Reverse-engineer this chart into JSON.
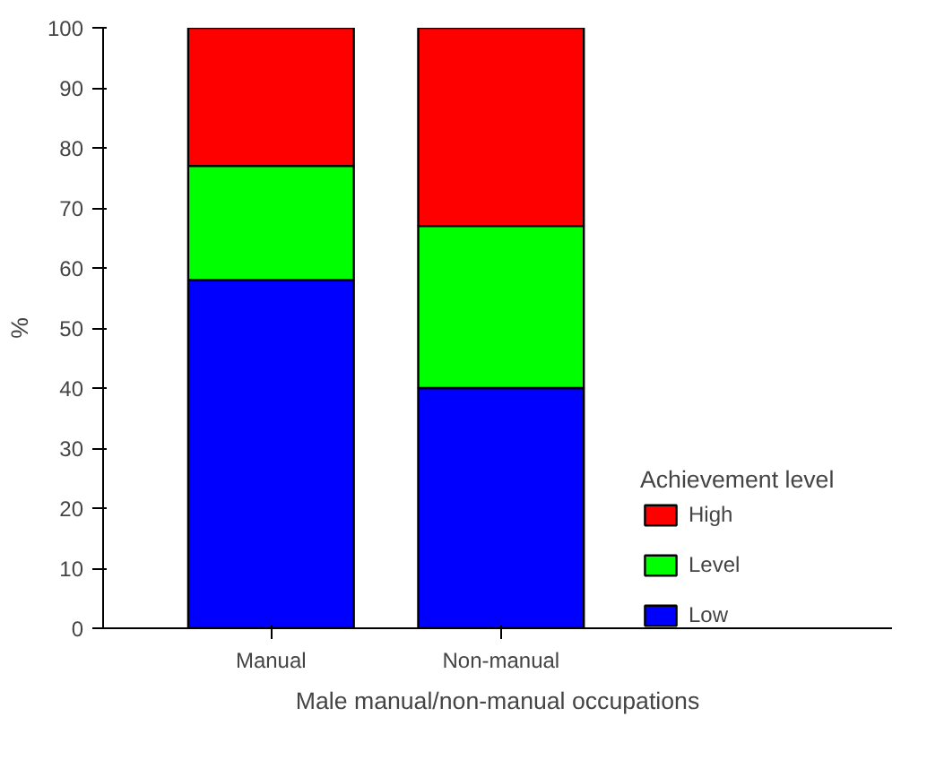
{
  "chart_data": {
    "type": "bar",
    "stacked": true,
    "categories": [
      "Manual",
      "Non-manual"
    ],
    "series": [
      {
        "name": "Low",
        "color": "#0000ff",
        "values": [
          58,
          40
        ]
      },
      {
        "name": "Level",
        "color": "#00ff00",
        "values": [
          19,
          27
        ]
      },
      {
        "name": "High",
        "color": "#ff0000",
        "values": [
          23,
          33
        ]
      }
    ],
    "xlabel": "Male manual/non-manual occupations",
    "ylabel": "%",
    "legend_title": "Achievement level",
    "legend": "right",
    "grid": false,
    "ylim": [
      0,
      100
    ],
    "yticks": [
      0,
      10,
      20,
      30,
      40,
      50,
      60,
      70,
      80,
      90,
      100
    ]
  }
}
